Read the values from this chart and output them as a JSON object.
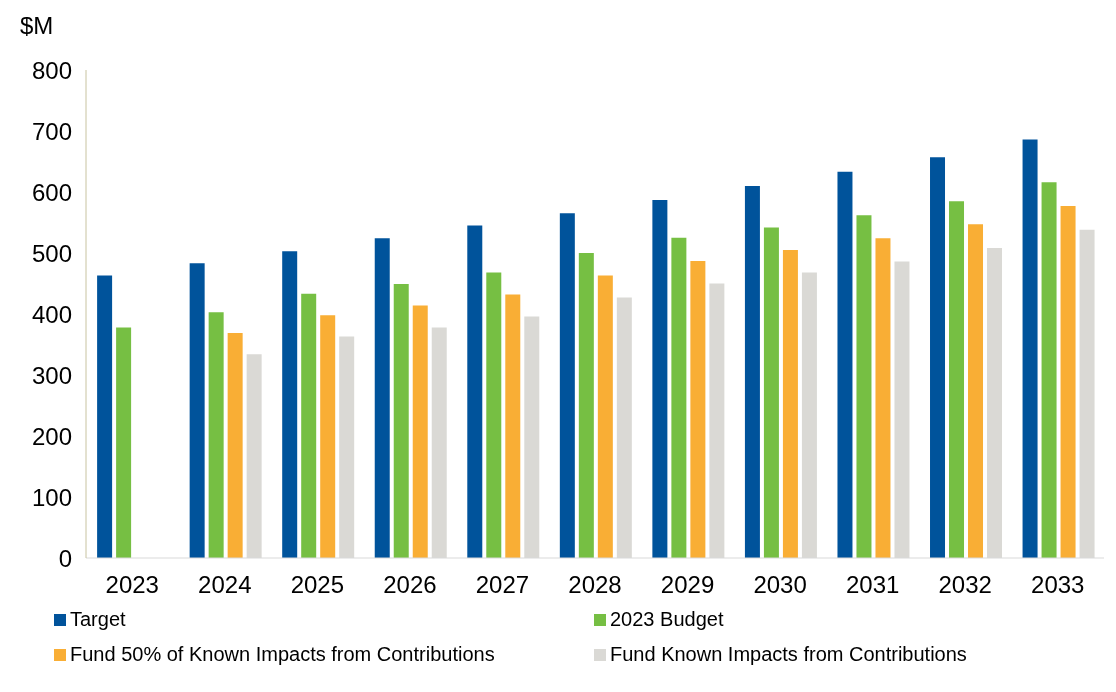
{
  "chart_data": {
    "type": "bar",
    "ylabel": "$M",
    "categories": [
      "2023",
      "2024",
      "2025",
      "2026",
      "2027",
      "2028",
      "2029",
      "2030",
      "2031",
      "2032",
      "2033"
    ],
    "series": [
      {
        "name": "Target",
        "color": "#00539b",
        "values": [
          463,
          483,
          503,
          524,
          545,
          565,
          587,
          610,
          633,
          657,
          686
        ]
      },
      {
        "name": "2023 Budget",
        "color": "#76bf43",
        "values": [
          378,
          403,
          433,
          449,
          468,
          500,
          525,
          542,
          562,
          585,
          616
        ]
      },
      {
        "name": "Fund 50% of Known Impacts from Contributions",
        "color": "#f9ae35",
        "values": [
          null,
          369,
          398,
          414,
          432,
          463,
          487,
          505,
          524,
          547,
          577
        ]
      },
      {
        "name": "Fund Known Impacts from Contributions",
        "color": "#dad9d5",
        "values": [
          null,
          334,
          363,
          378,
          396,
          427,
          450,
          468,
          486,
          508,
          538
        ]
      }
    ],
    "ylim": [
      0,
      800
    ],
    "yticks": [
      0,
      100,
      200,
      300,
      400,
      500,
      600,
      700,
      800
    ],
    "grid": false,
    "legend": "bottom"
  }
}
